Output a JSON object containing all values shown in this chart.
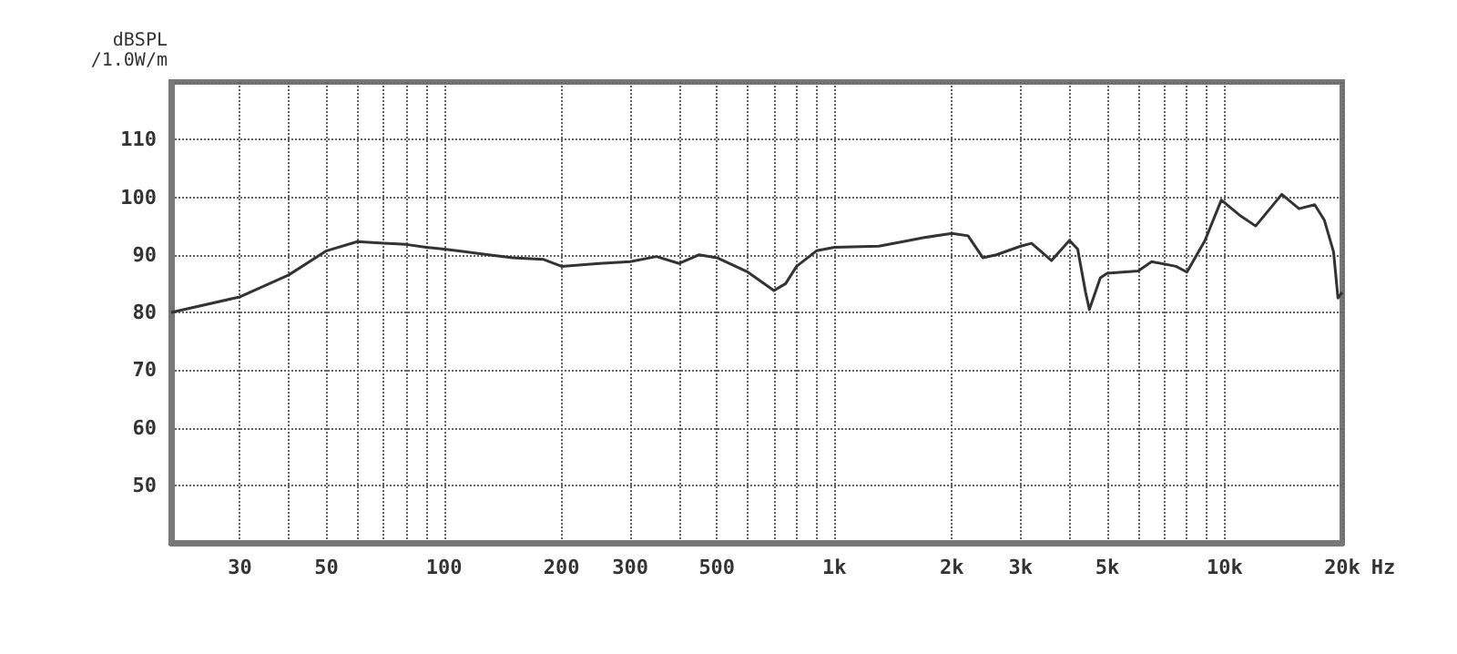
{
  "chart_data": {
    "type": "line",
    "ylabel": "dBSPL\n/1.0W/m",
    "log": "x",
    "grid": true,
    "marker": "none",
    "x": [
      20,
      30,
      40,
      50,
      60,
      70,
      80,
      90,
      100,
      130,
      150,
      180,
      200,
      250,
      300,
      350,
      400,
      450,
      500,
      600,
      700,
      750,
      800,
      900,
      1000,
      1300,
      1500,
      1700,
      2000,
      2200,
      2400,
      2600,
      3000,
      3200,
      3600,
      4000,
      4200,
      4400,
      4500,
      4800,
      5000,
      6000,
      6500,
      7500,
      8000,
      8900,
      9800,
      11000,
      12000,
      14000,
      15500,
      17000,
      18000,
      19000,
      19500,
      20000
    ],
    "series": [
      {
        "color": "#333333",
        "values": [
          80,
          82.7,
          86.5,
          90.7,
          92.3,
          92,
          91.8,
          91.3,
          91,
          90,
          89.5,
          89.2,
          88,
          88.5,
          88.8,
          89.7,
          88.5,
          90,
          89.5,
          87,
          83.8,
          85,
          88,
          90.7,
          91.3,
          91.5,
          92.3,
          93,
          93.7,
          93.3,
          89.5,
          90,
          91.5,
          92,
          89,
          92.5,
          91,
          83.5,
          80.5,
          86,
          86.8,
          87.2,
          88.8,
          88,
          87,
          92.5,
          99.5,
          96.7,
          95,
          100.5,
          98,
          98.7,
          96,
          90.5,
          82.5,
          83.5
        ]
      }
    ],
    "xlim": [
      20,
      20000
    ],
    "xticks": [
      {
        "value": 20,
        "label": null
      },
      30,
      {
        "value": 40,
        "label": null
      },
      50,
      {
        "value": 60,
        "label": null
      },
      {
        "value": 70,
        "label": null
      },
      {
        "value": 80,
        "label": null
      },
      {
        "value": 90,
        "label": null
      },
      100,
      200,
      300,
      {
        "value": 400,
        "label": null
      },
      500,
      {
        "value": 600,
        "label": null
      },
      {
        "value": 700,
        "label": null
      },
      {
        "value": 800,
        "label": null
      },
      {
        "value": 900,
        "label": null
      },
      {
        "value": 1000,
        "label": "1k"
      },
      {
        "value": 2000,
        "label": "2k"
      },
      {
        "value": 3000,
        "label": "3k"
      },
      {
        "value": 4000,
        "label": null
      },
      {
        "value": 5000,
        "label": "5k"
      },
      {
        "value": 6000,
        "label": null
      },
      {
        "value": 7000,
        "label": null
      },
      {
        "value": 8000,
        "label": null
      },
      {
        "value": 9000,
        "label": null
      },
      {
        "value": 10000,
        "label": "10k"
      },
      {
        "value": 20000,
        "label": "20k"
      }
    ],
    "xlabel": "Hz",
    "ylim": [
      40,
      120
    ],
    "yticks": [
      {
        "value": 40,
        "label": null
      },
      50,
      60,
      70,
      80,
      90,
      100,
      110,
      {
        "value": 120,
        "label": null
      }
    ]
  }
}
